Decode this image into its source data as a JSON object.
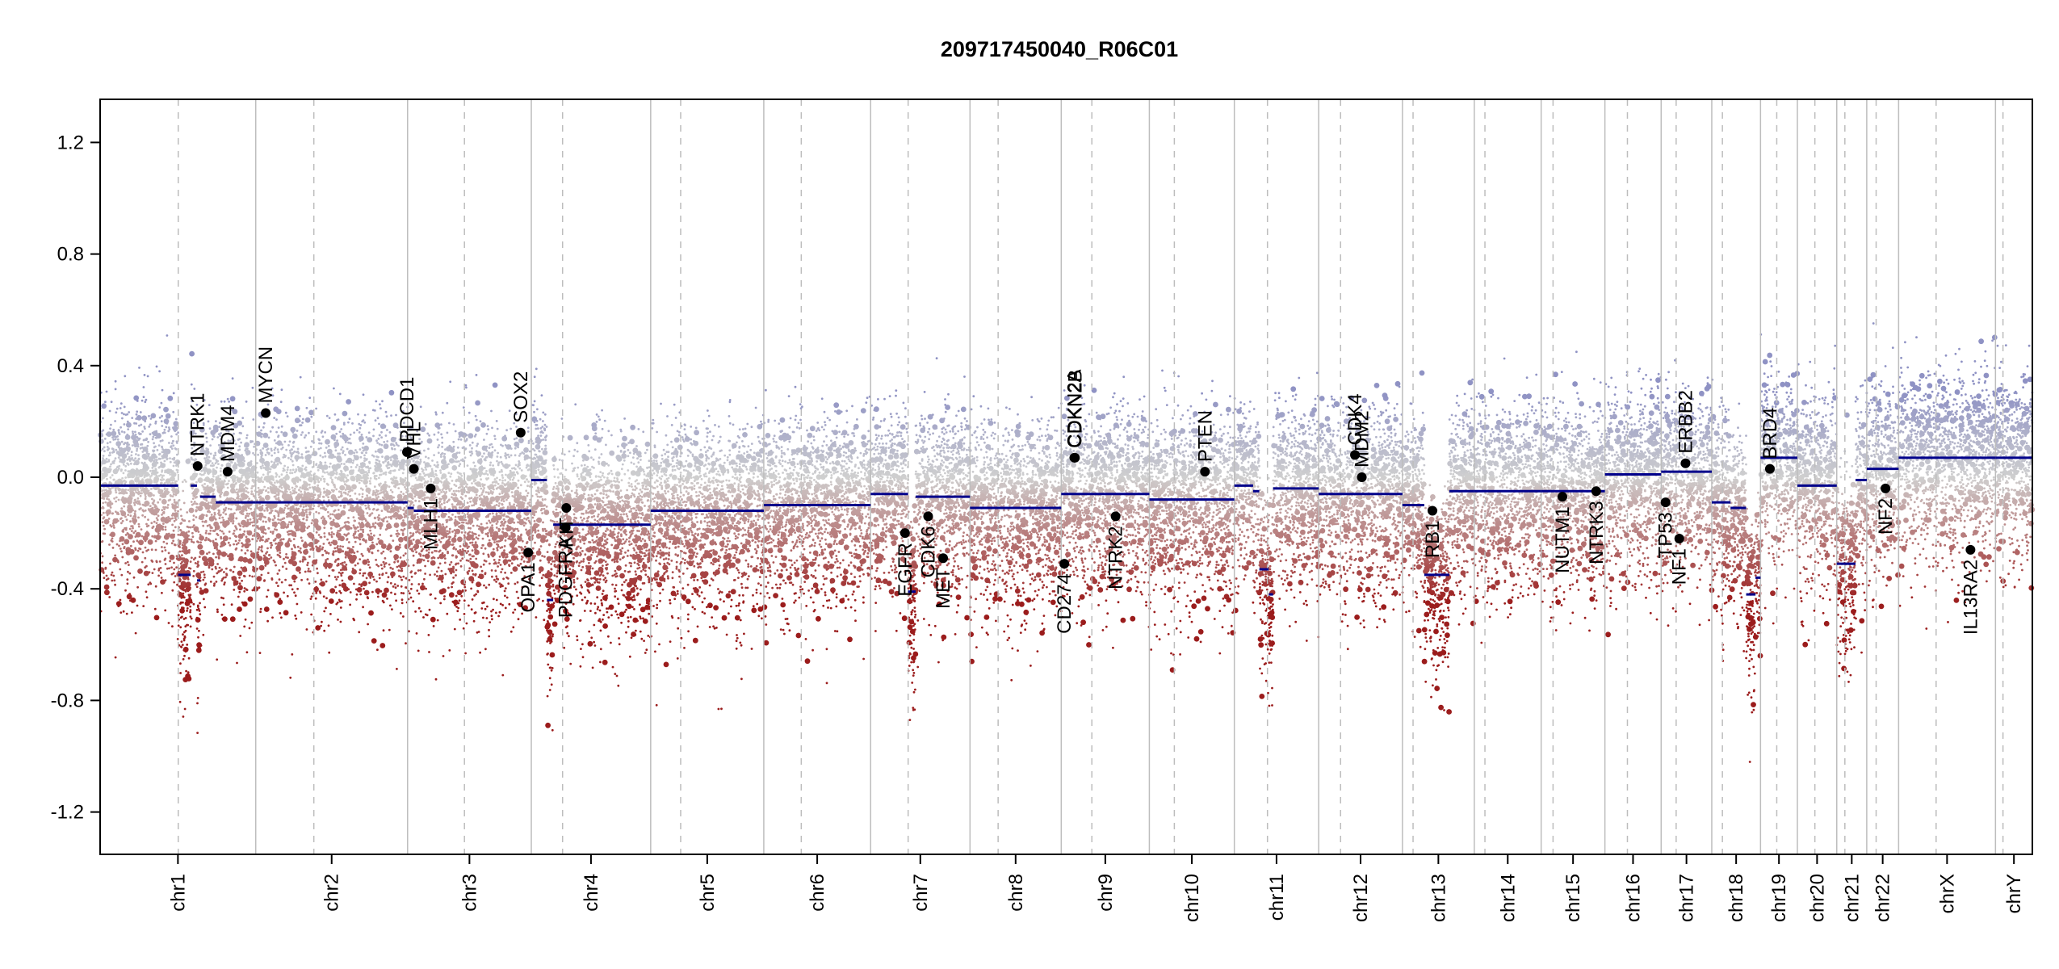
{
  "chart_data": {
    "type": "scatter",
    "title": "209717450040_R06C01",
    "ylim": [
      -1.3,
      1.3
    ],
    "y_ticks": [
      "1.2",
      "0.8",
      "0.4",
      "0.0",
      "-0.4",
      "-0.8",
      "-1.2"
    ],
    "y_tick_values": [
      1.2,
      0.8,
      0.4,
      0.0,
      -0.4,
      -0.8,
      -1.2
    ],
    "grid": false,
    "colors": {
      "gain": "#8f92c4",
      "neutral": "#cfcfcf",
      "loss": "#9b1c1c",
      "segment": "#00008b",
      "gene_point": "#000000",
      "chr_border": "#bdbdbd"
    },
    "chromosomes": [
      {
        "name": "chr1",
        "length": 249,
        "centromere": 125
      },
      {
        "name": "chr2",
        "length": 243,
        "centromere": 93
      },
      {
        "name": "chr3",
        "length": 198,
        "centromere": 91
      },
      {
        "name": "chr4",
        "length": 191,
        "centromere": 50
      },
      {
        "name": "chr5",
        "length": 181,
        "centromere": 48
      },
      {
        "name": "chr6",
        "length": 171,
        "centromere": 60
      },
      {
        "name": "chr7",
        "length": 159,
        "centromere": 60
      },
      {
        "name": "chr8",
        "length": 146,
        "centromere": 45
      },
      {
        "name": "chr9",
        "length": 141,
        "centromere": 49
      },
      {
        "name": "chr10",
        "length": 136,
        "centromere": 40
      },
      {
        "name": "chr11",
        "length": 135,
        "centromere": 53
      },
      {
        "name": "chr12",
        "length": 134,
        "centromere": 35
      },
      {
        "name": "chr13",
        "length": 115,
        "centromere": 17
      },
      {
        "name": "chr14",
        "length": 107,
        "centromere": 17
      },
      {
        "name": "chr15",
        "length": 102,
        "centromere": 19
      },
      {
        "name": "chr16",
        "length": 90,
        "centromere": 36
      },
      {
        "name": "chr17",
        "length": 81,
        "centromere": 24
      },
      {
        "name": "chr18",
        "length": 78,
        "centromere": 17
      },
      {
        "name": "chr19",
        "length": 59,
        "centromere": 26
      },
      {
        "name": "chr20",
        "length": 63,
        "centromere": 28
      },
      {
        "name": "chr21",
        "length": 48,
        "centromere": 13
      },
      {
        "name": "chr22",
        "length": 51,
        "centromere": 15
      },
      {
        "name": "chrX",
        "length": 155,
        "centromere": 60
      },
      {
        "name": "chrY",
        "length": 59,
        "centromere": 12
      }
    ],
    "segments": [
      {
        "chr": "chr1",
        "start": 0,
        "end": 125,
        "value": -0.03
      },
      {
        "chr": "chr1",
        "start": 125,
        "end": 145,
        "value": -0.35
      },
      {
        "chr": "chr1",
        "start": 145,
        "end": 155,
        "value": -0.03
      },
      {
        "chr": "chr1",
        "start": 155,
        "end": 160,
        "value": -0.37
      },
      {
        "chr": "chr1",
        "start": 160,
        "end": 185,
        "value": -0.07
      },
      {
        "chr": "chr1",
        "start": 185,
        "end": 249,
        "value": -0.09
      },
      {
        "chr": "chr2",
        "start": 0,
        "end": 243,
        "value": -0.09
      },
      {
        "chr": "chr3",
        "start": 0,
        "end": 10,
        "value": -0.11
      },
      {
        "chr": "chr3",
        "start": 10,
        "end": 198,
        "value": -0.12
      },
      {
        "chr": "chr4",
        "start": 0,
        "end": 25,
        "value": -0.01
      },
      {
        "chr": "chr4",
        "start": 25,
        "end": 35,
        "value": -0.44
      },
      {
        "chr": "chr4",
        "start": 35,
        "end": 191,
        "value": -0.17
      },
      {
        "chr": "chr5",
        "start": 0,
        "end": 181,
        "value": -0.12
      },
      {
        "chr": "chr6",
        "start": 0,
        "end": 171,
        "value": -0.1
      },
      {
        "chr": "chr7",
        "start": 0,
        "end": 60,
        "value": -0.06
      },
      {
        "chr": "chr7",
        "start": 60,
        "end": 72,
        "value": -0.41
      },
      {
        "chr": "chr7",
        "start": 72,
        "end": 159,
        "value": -0.07
      },
      {
        "chr": "chr8",
        "start": 0,
        "end": 146,
        "value": -0.11
      },
      {
        "chr": "chr9",
        "start": 0,
        "end": 141,
        "value": -0.06
      },
      {
        "chr": "chr10",
        "start": 0,
        "end": 136,
        "value": -0.08
      },
      {
        "chr": "chr11",
        "start": 0,
        "end": 30,
        "value": -0.03
      },
      {
        "chr": "chr11",
        "start": 30,
        "end": 40,
        "value": -0.05
      },
      {
        "chr": "chr11",
        "start": 40,
        "end": 55,
        "value": -0.33
      },
      {
        "chr": "chr11",
        "start": 55,
        "end": 62,
        "value": -0.42
      },
      {
        "chr": "chr11",
        "start": 62,
        "end": 135,
        "value": -0.04
      },
      {
        "chr": "chr12",
        "start": 0,
        "end": 134,
        "value": -0.06
      },
      {
        "chr": "chr13",
        "start": 0,
        "end": 35,
        "value": -0.1
      },
      {
        "chr": "chr13",
        "start": 35,
        "end": 75,
        "value": -0.35
      },
      {
        "chr": "chr13",
        "start": 75,
        "end": 115,
        "value": -0.05
      },
      {
        "chr": "chr14",
        "start": 0,
        "end": 107,
        "value": -0.05
      },
      {
        "chr": "chr15",
        "start": 0,
        "end": 102,
        "value": -0.05
      },
      {
        "chr": "chr16",
        "start": 0,
        "end": 90,
        "value": 0.01
      },
      {
        "chr": "chr17",
        "start": 0,
        "end": 81,
        "value": 0.02
      },
      {
        "chr": "chr18",
        "start": 0,
        "end": 30,
        "value": -0.09
      },
      {
        "chr": "chr18",
        "start": 30,
        "end": 55,
        "value": -0.11
      },
      {
        "chr": "chr18",
        "start": 55,
        "end": 70,
        "value": -0.42
      },
      {
        "chr": "chr18",
        "start": 70,
        "end": 78,
        "value": -0.36
      },
      {
        "chr": "chr19",
        "start": 0,
        "end": 59,
        "value": 0.07
      },
      {
        "chr": "chr20",
        "start": 0,
        "end": 63,
        "value": -0.03
      },
      {
        "chr": "chr21",
        "start": 0,
        "end": 30,
        "value": -0.31
      },
      {
        "chr": "chr21",
        "start": 30,
        "end": 48,
        "value": -0.01
      },
      {
        "chr": "chr22",
        "start": 0,
        "end": 51,
        "value": 0.03
      },
      {
        "chr": "chrX",
        "start": 0,
        "end": 155,
        "value": 0.07
      },
      {
        "chr": "chrY",
        "start": 0,
        "end": 59,
        "value": 0.07
      }
    ],
    "genes": [
      {
        "name": "NTRK1",
        "chr": "chr1",
        "pos": 156,
        "value": 0.04
      },
      {
        "name": "MDM4",
        "chr": "chr1",
        "pos": 204,
        "value": 0.02
      },
      {
        "name": "MYCN",
        "chr": "chr2",
        "pos": 16,
        "value": 0.23
      },
      {
        "name": "PDCD1",
        "chr": "chr2",
        "pos": 242,
        "value": 0.09
      },
      {
        "name": "VHL",
        "chr": "chr3",
        "pos": 10,
        "value": 0.03
      },
      {
        "name": "MLH1",
        "chr": "chr3",
        "pos": 37,
        "value": -0.04
      },
      {
        "name": "SOX2",
        "chr": "chr3",
        "pos": 181,
        "value": 0.16
      },
      {
        "name": "OPA1",
        "chr": "chr3",
        "pos": 193,
        "value": -0.27
      },
      {
        "name": "PDGFRA",
        "chr": "chr4",
        "pos": 55,
        "value": -0.18
      },
      {
        "name": "KIT",
        "chr": "chr4",
        "pos": 56,
        "value": -0.11
      },
      {
        "name": "EGFR",
        "chr": "chr7",
        "pos": 55,
        "value": -0.2
      },
      {
        "name": "CDK6",
        "chr": "chr7",
        "pos": 92,
        "value": -0.14
      },
      {
        "name": "MET",
        "chr": "chr7",
        "pos": 116,
        "value": -0.29
      },
      {
        "name": "CD274",
        "chr": "chr9",
        "pos": 5,
        "value": -0.31
      },
      {
        "name": "CDKN2A",
        "chr": "chr9",
        "pos": 21,
        "value": 0.07
      },
      {
        "name": "CDKN2B",
        "chr": "chr9",
        "pos": 22,
        "value": 0.07
      },
      {
        "name": "NTRK2",
        "chr": "chr9",
        "pos": 87,
        "value": -0.14
      },
      {
        "name": "PTEN",
        "chr": "chr10",
        "pos": 89,
        "value": 0.02
      },
      {
        "name": "CDK4",
        "chr": "chr12",
        "pos": 58,
        "value": 0.08
      },
      {
        "name": "MDM2",
        "chr": "chr12",
        "pos": 69,
        "value": 0.0
      },
      {
        "name": "RB1",
        "chr": "chr13",
        "pos": 48,
        "value": -0.12
      },
      {
        "name": "NUTM1",
        "chr": "chr15",
        "pos": 34,
        "value": -0.07
      },
      {
        "name": "NTRK3",
        "chr": "chr15",
        "pos": 88,
        "value": -0.05
      },
      {
        "name": "TP53",
        "chr": "chr17",
        "pos": 7,
        "value": -0.09
      },
      {
        "name": "NF1",
        "chr": "chr17",
        "pos": 29,
        "value": -0.22
      },
      {
        "name": "ERBB2",
        "chr": "chr17",
        "pos": 39,
        "value": 0.05
      },
      {
        "name": "BRD4",
        "chr": "chr19",
        "pos": 15,
        "value": 0.03
      },
      {
        "name": "NF2",
        "chr": "chr22",
        "pos": 30,
        "value": -0.04
      },
      {
        "name": "IL13RA2",
        "chr": "chrX",
        "pos": 115,
        "value": -0.26
      }
    ]
  }
}
